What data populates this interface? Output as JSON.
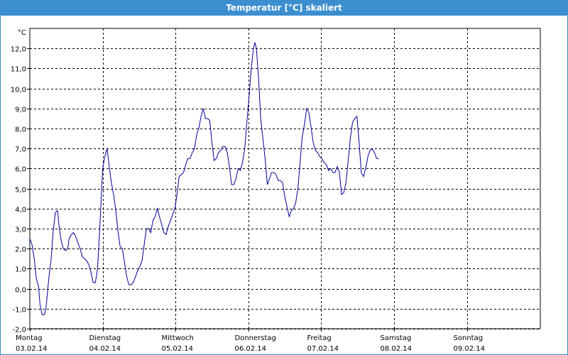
{
  "window": {
    "title": "Temperatur [°C] skaliert"
  },
  "chart_data": {
    "type": "line",
    "title": "Temperatur [°C] skaliert",
    "ylabel": "°C",
    "xlabel": "",
    "ylim": [
      -2.0,
      13.0
    ],
    "yticks": [
      -2.0,
      -1.0,
      0.0,
      1.0,
      2.0,
      3.0,
      4.0,
      5.0,
      6.0,
      7.0,
      8.0,
      9.0,
      10.0,
      11.0,
      12.0
    ],
    "ytick_labels": [
      "-2,0",
      "-1,0",
      "0,0",
      "1,0",
      "2,0",
      "3,0",
      "4,0",
      "5,0",
      "6,0",
      "7,0",
      "8,0",
      "9,0",
      "10,0",
      "11,0",
      "12,0"
    ],
    "xlim": [
      0,
      7
    ],
    "grid": true,
    "day_labels": [
      {
        "day": "Montag",
        "date": "03.02.14"
      },
      {
        "day": "Dienstag",
        "date": "04.02.14"
      },
      {
        "day": "Mittwoch",
        "date": "05.02.14"
      },
      {
        "day": "Donnerstag",
        "date": "06.02.14"
      },
      {
        "day": "Freitag",
        "date": "07.02.14"
      },
      {
        "day": "Samstag",
        "date": "08.02.14"
      },
      {
        "day": "Sonntag",
        "date": "09.02.14"
      }
    ],
    "series": [
      {
        "color": "#000099",
        "points": [
          [
            0.0,
            2.5
          ],
          [
            0.03,
            2.2
          ],
          [
            0.06,
            1.5
          ],
          [
            0.09,
            0.5
          ],
          [
            0.12,
            0.1
          ],
          [
            0.14,
            -0.8
          ],
          [
            0.17,
            -1.3
          ],
          [
            0.2,
            -1.3
          ],
          [
            0.22,
            -1.0
          ],
          [
            0.24,
            -0.3
          ],
          [
            0.26,
            0.5
          ],
          [
            0.29,
            1.4
          ],
          [
            0.32,
            2.8
          ],
          [
            0.35,
            3.8
          ],
          [
            0.38,
            3.9
          ],
          [
            0.4,
            3.2
          ],
          [
            0.43,
            2.4
          ],
          [
            0.46,
            2.0
          ],
          [
            0.49,
            1.9
          ],
          [
            0.52,
            2.0
          ],
          [
            0.54,
            2.5
          ],
          [
            0.57,
            2.7
          ],
          [
            0.6,
            2.8
          ],
          [
            0.63,
            2.6
          ],
          [
            0.66,
            2.3
          ],
          [
            0.69,
            2.0
          ],
          [
            0.72,
            1.6
          ],
          [
            0.75,
            1.5
          ],
          [
            0.78,
            1.4
          ],
          [
            0.81,
            1.2
          ],
          [
            0.84,
            0.8
          ],
          [
            0.87,
            0.3
          ],
          [
            0.9,
            0.3
          ],
          [
            0.93,
            1.0
          ],
          [
            0.96,
            3.0
          ],
          [
            1.0,
            6.0
          ],
          [
            1.03,
            6.6
          ],
          [
            1.06,
            7.0
          ],
          [
            1.09,
            6.1
          ],
          [
            1.12,
            5.3
          ],
          [
            1.15,
            4.7
          ],
          [
            1.18,
            3.9
          ],
          [
            1.21,
            2.9
          ],
          [
            1.24,
            2.1
          ],
          [
            1.27,
            2.0
          ],
          [
            1.3,
            1.3
          ],
          [
            1.33,
            0.6
          ],
          [
            1.36,
            0.2
          ],
          [
            1.39,
            0.2
          ],
          [
            1.42,
            0.3
          ],
          [
            1.45,
            0.6
          ],
          [
            1.48,
            0.9
          ],
          [
            1.51,
            1.1
          ],
          [
            1.54,
            1.4
          ],
          [
            1.57,
            2.2
          ],
          [
            1.6,
            3.0
          ],
          [
            1.63,
            3.0
          ],
          [
            1.66,
            2.8
          ],
          [
            1.69,
            3.4
          ],
          [
            1.72,
            3.6
          ],
          [
            1.75,
            4.0
          ],
          [
            1.78,
            3.6
          ],
          [
            1.81,
            3.2
          ],
          [
            1.84,
            2.8
          ],
          [
            1.87,
            2.7
          ],
          [
            1.9,
            3.1
          ],
          [
            1.93,
            3.4
          ],
          [
            1.96,
            3.7
          ],
          [
            1.99,
            4.0
          ],
          [
            2.02,
            4.7
          ],
          [
            2.05,
            5.6
          ],
          [
            2.08,
            5.7
          ],
          [
            2.11,
            5.8
          ],
          [
            2.14,
            6.2
          ],
          [
            2.17,
            6.5
          ],
          [
            2.2,
            6.5
          ],
          [
            2.23,
            6.8
          ],
          [
            2.26,
            7.0
          ],
          [
            2.29,
            7.7
          ],
          [
            2.32,
            8.0
          ],
          [
            2.35,
            8.6
          ],
          [
            2.38,
            9.0
          ],
          [
            2.41,
            8.5
          ],
          [
            2.44,
            8.5
          ],
          [
            2.47,
            8.4
          ],
          [
            2.5,
            7.3
          ],
          [
            2.53,
            6.4
          ],
          [
            2.56,
            6.5
          ],
          [
            2.59,
            6.8
          ],
          [
            2.62,
            6.9
          ],
          [
            2.65,
            7.1
          ],
          [
            2.68,
            7.1
          ],
          [
            2.71,
            6.8
          ],
          [
            2.74,
            6.1
          ],
          [
            2.77,
            5.2
          ],
          [
            2.8,
            5.2
          ],
          [
            2.83,
            5.5
          ],
          [
            2.86,
            6.0
          ],
          [
            2.89,
            5.9
          ],
          [
            2.92,
            6.3
          ],
          [
            2.95,
            7.0
          ],
          [
            2.98,
            8.3
          ],
          [
            3.01,
            9.6
          ],
          [
            3.04,
            11.0
          ],
          [
            3.07,
            12.0
          ],
          [
            3.09,
            12.3
          ],
          [
            3.11,
            12.0
          ],
          [
            3.14,
            10.5
          ],
          [
            3.17,
            8.5
          ],
          [
            3.2,
            7.5
          ],
          [
            3.23,
            6.5
          ],
          [
            3.26,
            5.2
          ],
          [
            3.29,
            5.5
          ],
          [
            3.32,
            5.8
          ],
          [
            3.35,
            5.8
          ],
          [
            3.38,
            5.7
          ],
          [
            3.41,
            5.4
          ],
          [
            3.44,
            5.4
          ],
          [
            3.47,
            5.3
          ],
          [
            3.5,
            4.6
          ],
          [
            3.53,
            4.1
          ],
          [
            3.56,
            3.6
          ],
          [
            3.59,
            3.9
          ],
          [
            3.62,
            4.0
          ],
          [
            3.65,
            4.3
          ],
          [
            3.68,
            5.0
          ],
          [
            3.71,
            6.3
          ],
          [
            3.74,
            7.6
          ],
          [
            3.77,
            8.2
          ],
          [
            3.8,
            9.0
          ],
          [
            3.83,
            8.8
          ],
          [
            3.86,
            8.1
          ],
          [
            3.89,
            7.3
          ],
          [
            3.92,
            6.9
          ],
          [
            3.95,
            6.8
          ],
          [
            3.98,
            6.6
          ],
          [
            4.01,
            6.5
          ],
          [
            4.04,
            6.3
          ],
          [
            4.07,
            6.2
          ],
          [
            4.1,
            5.9
          ],
          [
            4.13,
            6.0
          ],
          [
            4.16,
            5.8
          ],
          [
            4.19,
            5.8
          ],
          [
            4.22,
            6.1
          ],
          [
            4.25,
            5.8
          ],
          [
            4.28,
            4.7
          ],
          [
            4.31,
            4.8
          ],
          [
            4.34,
            5.3
          ],
          [
            4.37,
            6.4
          ],
          [
            4.4,
            7.5
          ],
          [
            4.43,
            8.3
          ],
          [
            4.46,
            8.5
          ],
          [
            4.49,
            8.6
          ],
          [
            4.52,
            7.3
          ],
          [
            4.55,
            5.8
          ],
          [
            4.58,
            5.6
          ],
          [
            4.61,
            6.0
          ],
          [
            4.64,
            6.6
          ],
          [
            4.67,
            6.9
          ],
          [
            4.7,
            7.0
          ],
          [
            4.73,
            6.8
          ],
          [
            4.76,
            6.5
          ],
          [
            4.79,
            6.5
          ]
        ]
      }
    ]
  }
}
